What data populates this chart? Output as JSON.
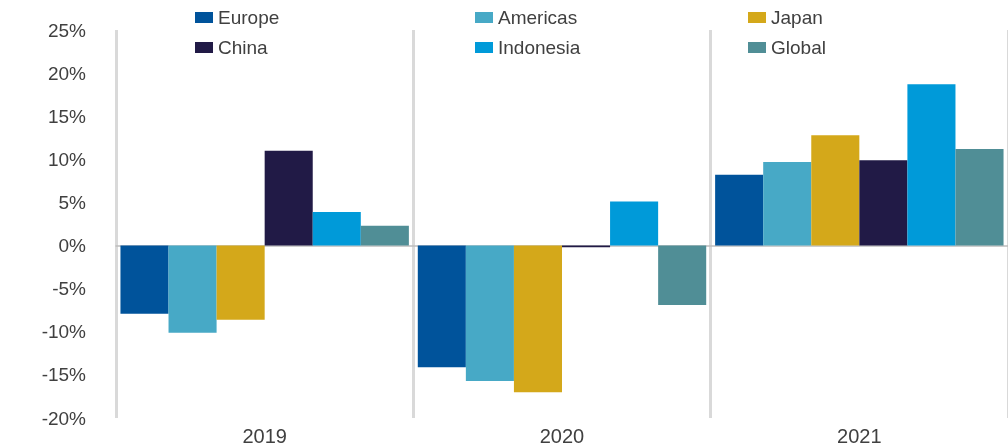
{
  "chart_data": {
    "type": "bar",
    "categories": [
      "2019",
      "2020",
      "2021"
    ],
    "series": [
      {
        "name": "Europe",
        "color": "#00539b",
        "values": [
          -7.9,
          -14.1,
          8.2
        ]
      },
      {
        "name": "Americas",
        "color": "#47a9c6",
        "values": [
          -10.1,
          -15.7,
          9.7
        ]
      },
      {
        "name": "Japan",
        "color": "#d4a81a",
        "values": [
          -8.6,
          -17.0,
          12.8
        ]
      },
      {
        "name": "China",
        "color": "#211a46",
        "values": [
          11.0,
          -0.2,
          9.9
        ]
      },
      {
        "name": "Indonesia",
        "color": "#009ad9",
        "values": [
          3.9,
          5.1,
          18.7
        ]
      },
      {
        "name": "Global",
        "color": "#508e96",
        "values": [
          2.3,
          -6.9,
          11.2
        ]
      }
    ],
    "ylim": [
      -20,
      25
    ],
    "yticks": [
      {
        "value": -20,
        "label": "-20%"
      },
      {
        "value": -15,
        "label": "-15%"
      },
      {
        "value": -10,
        "label": "-10%"
      },
      {
        "value": -5,
        "label": "-5%"
      },
      {
        "value": 0,
        "label": "0%"
      },
      {
        "value": 5,
        "label": "5%"
      },
      {
        "value": 10,
        "label": "10%"
      },
      {
        "value": 15,
        "label": "15%"
      },
      {
        "value": 20,
        "label": "20%"
      },
      {
        "value": 25,
        "label": "25%"
      }
    ],
    "grid": "x",
    "legend": "top"
  }
}
